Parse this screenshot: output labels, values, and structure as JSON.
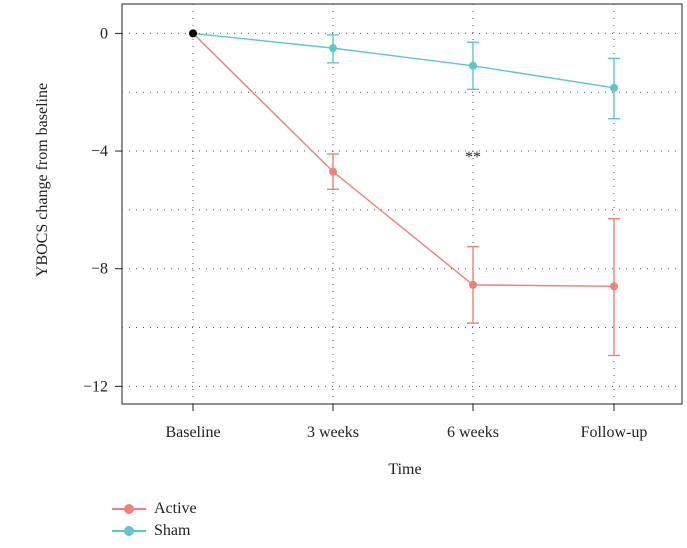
{
  "chart_data": {
    "type": "line",
    "categories": [
      "Baseline",
      "3 weeks",
      "6 weeks",
      "Follow-up"
    ],
    "xlabel": "Time",
    "ylabel": "YBOCS change from baseline",
    "ylim": [
      -12.6,
      1.0
    ],
    "yticks": [
      0,
      -4,
      -8,
      -12
    ],
    "ytick_labels": [
      "0",
      "−4",
      "−8",
      "−12"
    ],
    "grid": "dotted",
    "legend_position": "bottom-left",
    "annotation": {
      "text": "**",
      "category": "6 weeks",
      "y": -4.1
    },
    "series": [
      {
        "name": "Active",
        "color": "#F08078",
        "values": [
          0,
          -4.7,
          -8.55,
          -8.6
        ],
        "err_low": [
          0,
          -5.3,
          -9.85,
          -10.95
        ],
        "err_high": [
          0,
          -4.1,
          -7.25,
          -6.3
        ]
      },
      {
        "name": "Sham",
        "color": "#5CC8CC",
        "values": [
          0,
          -0.5,
          -1.1,
          -1.85
        ],
        "err_low": [
          0,
          -1.0,
          -1.9,
          -2.9
        ],
        "err_high": [
          0,
          -0.05,
          -0.3,
          -0.85
        ]
      }
    ],
    "baseline_point_color": "#000000"
  }
}
